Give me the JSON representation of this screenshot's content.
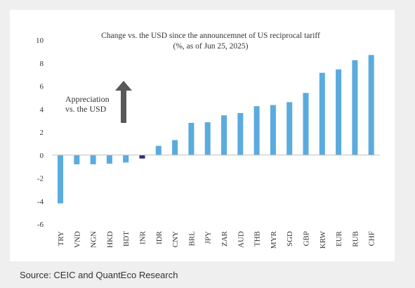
{
  "chart_data": {
    "type": "bar",
    "title": "Change vs. the USD since the announcemnet of US reciprocal tariff",
    "subtitle": "(%, as of Jun 25, 2025)",
    "annotation": "Appreciation vs. the USD",
    "annotation_lines": [
      "Appreciation",
      "vs. the USD"
    ],
    "categories": [
      "TRY",
      "VND",
      "NGN",
      "HKD",
      "BDT",
      "INR",
      "IDR",
      "CNY",
      "BRL",
      "JPY",
      "ZAR",
      "AUD",
      "THB",
      "MYR",
      "SGD",
      "GBP",
      "KRW",
      "EUR",
      "RUB",
      "CHF"
    ],
    "values": [
      -4.2,
      -0.8,
      -0.8,
      -0.75,
      -0.65,
      -0.3,
      0.8,
      1.3,
      2.8,
      2.85,
      3.45,
      3.65,
      4.25,
      4.35,
      4.6,
      5.4,
      7.15,
      7.45,
      8.25,
      8.7
    ],
    "bar_colors": [
      "#5aabde",
      "#5aabde",
      "#5aabde",
      "#5aabde",
      "#5aabde",
      "#2b2d7c",
      "#5aabde",
      "#5aabde",
      "#5aabde",
      "#5aabde",
      "#5aabde",
      "#5aabde",
      "#5aabde",
      "#5aabde",
      "#5aabde",
      "#5aabde",
      "#5aabde",
      "#5aabde",
      "#5aabde",
      "#5aabde"
    ],
    "ylim": [
      -6,
      10
    ],
    "yticks": [
      10,
      8,
      6,
      4,
      2,
      0,
      -2,
      -4,
      -6
    ],
    "xlabel": "",
    "ylabel": "",
    "grid": false,
    "legend": "none",
    "arrow_color": "#595959"
  },
  "footer": {
    "source": "Source: CEIC and QuantEco Research"
  }
}
